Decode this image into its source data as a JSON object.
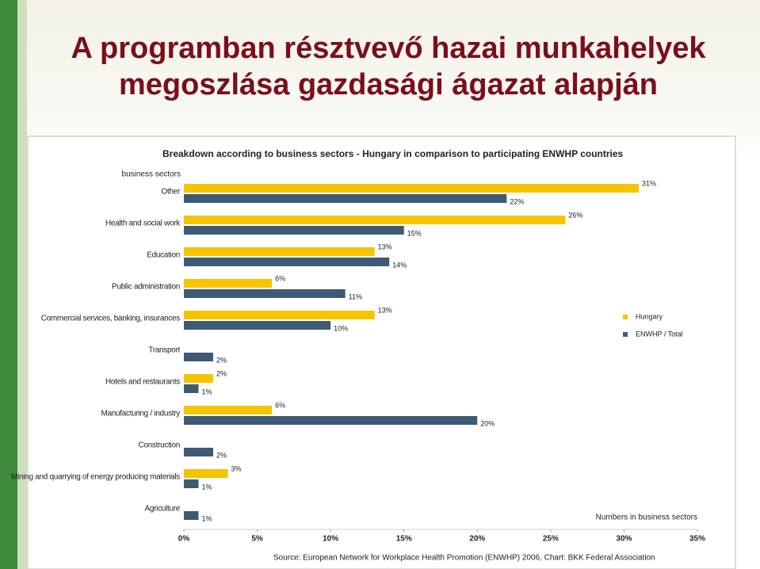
{
  "slide": {
    "title": [
      "A programban résztvevő hazai munkahelyek",
      "megoszlása gazdasági ágazat alapján"
    ]
  },
  "chart_data": {
    "type": "bar",
    "orientation": "horizontal",
    "title": "Breakdown according to business sectors - Hungary in comparison to participating ENWHP countries",
    "y_label": "business sectors",
    "x_label": "Numbers in business sectors",
    "source": "Source: European Network for Workplace Health Promotion (ENWHP) 2006, Chart: BKK Federal Association",
    "categories": [
      "Other",
      "Health and social work",
      "Education",
      "Public administration",
      "Commercial services, banking, insurances",
      "Transport",
      "Hotels and restaurants",
      "Manufacturing / industry",
      "Construction",
      "Mining and quarrying of energy producing materials",
      "Agriculture"
    ],
    "series": [
      {
        "name": "Hungary",
        "color": "#f5c400",
        "values": [
          31,
          26,
          13,
          6,
          13,
          null,
          2,
          6,
          null,
          3,
          null
        ],
        "value_labels": [
          "31%",
          "26%",
          "13%",
          "6%",
          "13%",
          null,
          "2%",
          "6%",
          null,
          "3%",
          null
        ]
      },
      {
        "name": "ENWHP / Total",
        "color": "#3f5a75",
        "values": [
          22,
          15,
          14,
          11,
          10,
          2,
          1,
          20,
          2,
          1,
          1
        ],
        "value_labels": [
          "22%",
          "15%",
          "14%",
          "11%",
          "10%",
          "2%",
          "1%",
          "20%",
          "2%",
          "1%",
          "1%"
        ]
      }
    ],
    "xlim": [
      0,
      35
    ],
    "xticks": [
      {
        "value": 0,
        "label": "0%"
      },
      {
        "value": 5,
        "label": "5%"
      },
      {
        "value": 10,
        "label": "10%"
      },
      {
        "value": 15,
        "label": "15%"
      },
      {
        "value": 20,
        "label": "20%"
      },
      {
        "value": 25,
        "label": "25%"
      },
      {
        "value": 30,
        "label": "30%"
      },
      {
        "value": 35,
        "label": "35%"
      }
    ],
    "grid": false,
    "legend": "right"
  }
}
